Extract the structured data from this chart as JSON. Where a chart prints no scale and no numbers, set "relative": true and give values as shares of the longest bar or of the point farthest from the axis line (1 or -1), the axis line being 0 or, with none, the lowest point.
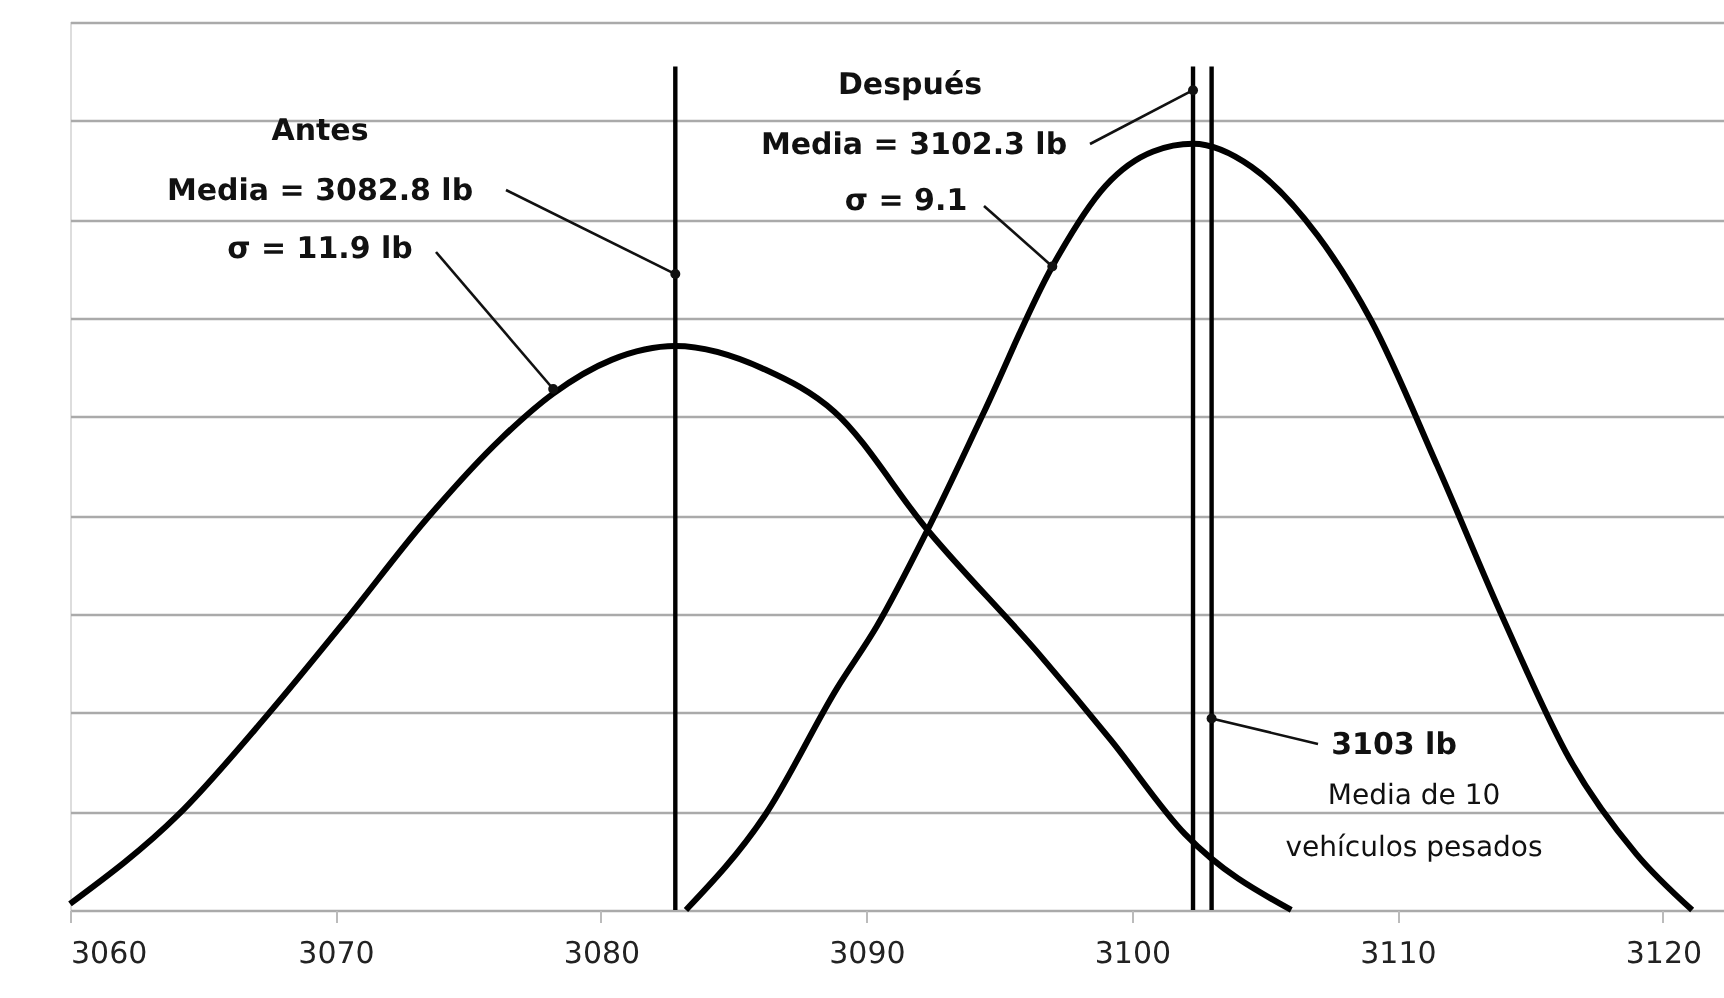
{
  "chart_data": {
    "type": "line",
    "relative": true,
    "xlim": [
      3060,
      3122.3
    ],
    "xticks": [
      3060,
      3070,
      3080,
      3090,
      3100,
      3110,
      3120
    ],
    "grid": "y",
    "line_style": "solid",
    "series": [
      {
        "color": "#000000",
        "x": [
          3060,
          3064.1,
          3067.4,
          3070.4,
          3073.4,
          3076.2,
          3078.2,
          3080.4,
          3082.8,
          3086.2,
          3088.8,
          3092.3,
          3096.5,
          3099.2,
          3102.0,
          3106.0
        ],
        "values": [
          0.008,
          0.125,
          0.253,
          0.379,
          0.509,
          0.614,
          0.674,
          0.718,
          0.736,
          0.705,
          0.65,
          0.496,
          0.334,
          0.222,
          0.099,
          0
        ]
      },
      {
        "color": "#000000",
        "x": [
          3083.2,
          3086.2,
          3088.9,
          3090.4,
          3092.3,
          3094.4,
          3097.0,
          3099.0,
          3100.8,
          3102.3,
          3104.5,
          3107.0,
          3109.0,
          3111.5,
          3114.0,
          3116.5,
          3119.0,
          3121.1
        ],
        "values": [
          0,
          0.125,
          0.29,
          0.371,
          0.496,
          0.648,
          0.84,
          0.945,
          0.99,
          1.0,
          0.97,
          0.88,
          0.77,
          0.58,
          0.379,
          0.196,
          0.073,
          0
        ]
      }
    ],
    "ref_lines": [
      {
        "axis": "x",
        "value": 3082.8,
        "color": "#000000"
      },
      {
        "axis": "x",
        "value": 3102.3,
        "color": "#000000"
      },
      {
        "axis": "x",
        "value": 3103,
        "color": "#000000"
      }
    ],
    "annotations": [
      "Antes",
      {
        "text": "Media = 3082.8 lb",
        "x": 3082.8,
        "y": 0.83
      },
      {
        "text": "σ = 11.9 lb",
        "x": 3078.2,
        "y": 0.68
      },
      "Después",
      {
        "text": "Media = 3102.3 lb",
        "x": 3102.3,
        "y": 1.07
      },
      {
        "text": "σ = 9.1",
        "x": 3097.0,
        "y": 0.84
      },
      {
        "text": "3103 lb",
        "x": 3103,
        "y": 0.25
      },
      "Media de 10",
      "vehículos pesados"
    ]
  }
}
